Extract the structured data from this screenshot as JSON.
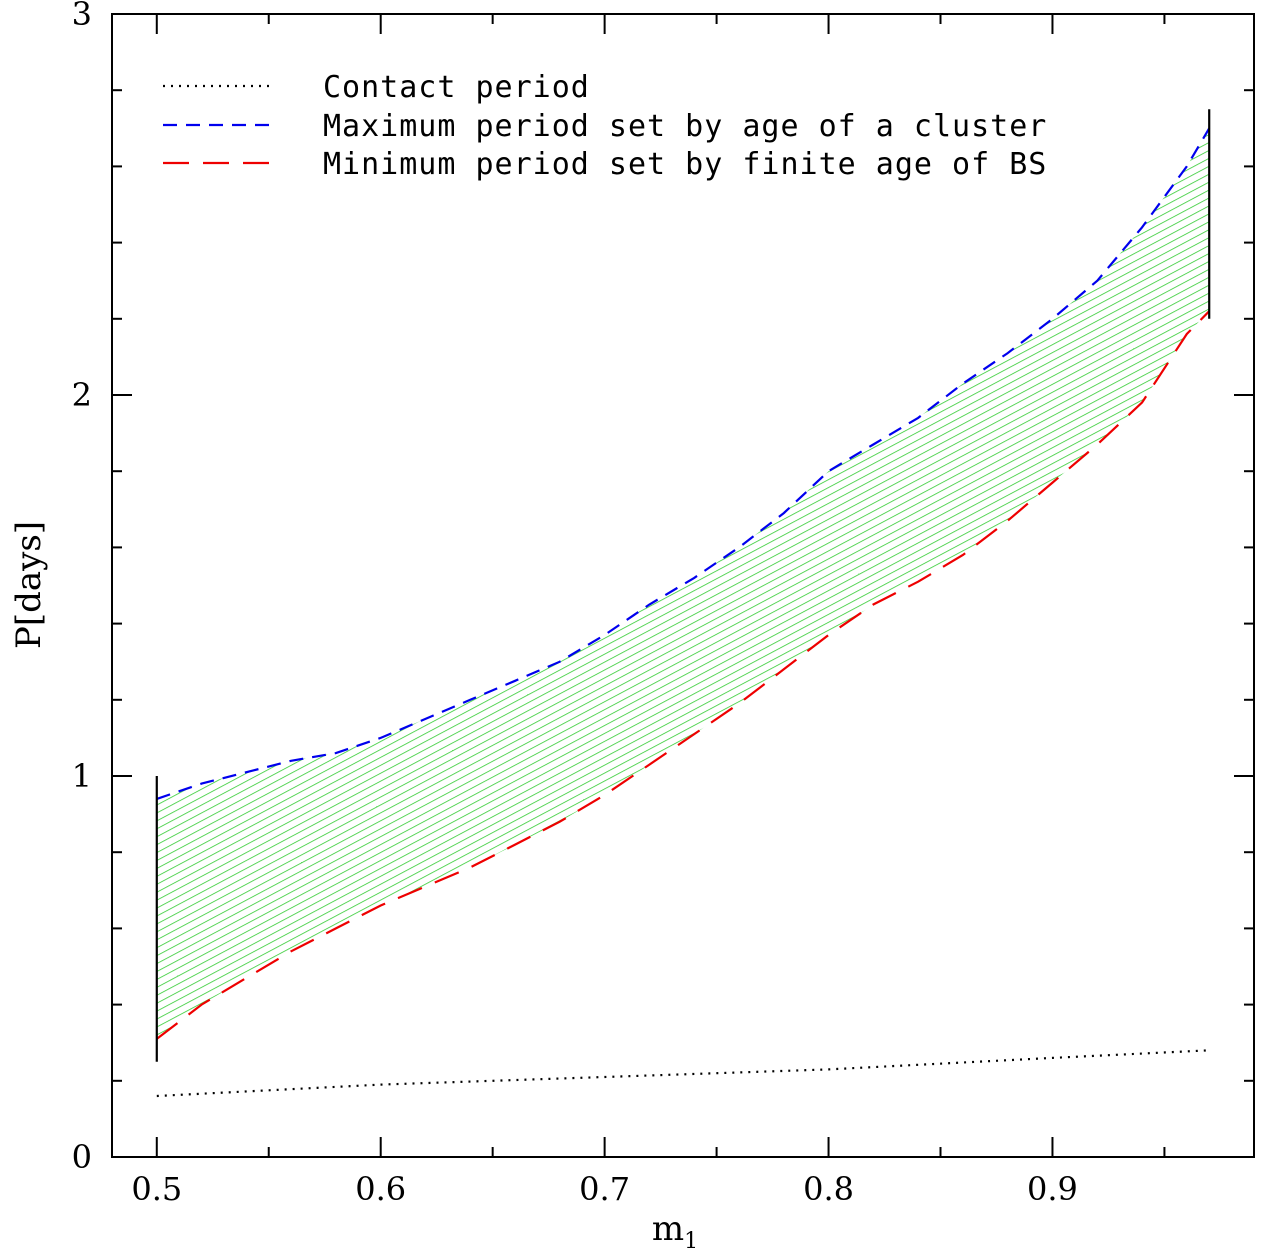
{
  "chart_data": {
    "type": "line",
    "xlabel": "m",
    "xlabel_sub": "1",
    "ylabel": "P[days]",
    "xlim": [
      0.48,
      0.99
    ],
    "ylim": [
      0,
      3
    ],
    "xticks": [
      0.5,
      0.6,
      0.7,
      0.8,
      0.9
    ],
    "xtick_labels": [
      "0.5",
      "0.6",
      "0.7",
      "0.8",
      "0.9"
    ],
    "yticks": [
      0,
      1,
      2,
      3
    ],
    "ytick_labels": [
      "0",
      "1",
      "2",
      "3"
    ],
    "legend_position": "top-left",
    "shaded_region": {
      "between": [
        "Maximum period set by age of a cluster",
        "Minimum period set by finite age of BS"
      ],
      "color": "#22cc22",
      "pattern": "diagonal-hatch"
    },
    "bounds": [
      {
        "x": 0.5,
        "y_range": [
          0.25,
          1.0
        ]
      },
      {
        "x": 0.97,
        "y_range": [
          2.2,
          2.75
        ]
      }
    ],
    "series": [
      {
        "name": "Contact period",
        "style": "dotted",
        "color": "#000000",
        "x": [
          0.5,
          0.6,
          0.7,
          0.8,
          0.9,
          0.97
        ],
        "y": [
          0.16,
          0.19,
          0.21,
          0.23,
          0.26,
          0.28
        ]
      },
      {
        "name": "Maximum period set by age of a cluster",
        "style": "short-dash",
        "color": "#0000ee",
        "x": [
          0.5,
          0.52,
          0.54,
          0.56,
          0.58,
          0.6,
          0.62,
          0.64,
          0.66,
          0.68,
          0.7,
          0.72,
          0.74,
          0.76,
          0.78,
          0.8,
          0.82,
          0.84,
          0.86,
          0.88,
          0.9,
          0.92,
          0.94,
          0.96,
          0.97
        ],
        "y": [
          0.94,
          0.98,
          1.01,
          1.04,
          1.06,
          1.1,
          1.15,
          1.2,
          1.25,
          1.3,
          1.37,
          1.45,
          1.52,
          1.6,
          1.69,
          1.8,
          1.87,
          1.94,
          2.03,
          2.11,
          2.2,
          2.3,
          2.44,
          2.6,
          2.7
        ]
      },
      {
        "name": "Minimum period set by finite age of BS",
        "style": "long-dash",
        "color": "#ee0000",
        "x": [
          0.5,
          0.52,
          0.54,
          0.56,
          0.58,
          0.6,
          0.62,
          0.64,
          0.66,
          0.68,
          0.7,
          0.72,
          0.74,
          0.76,
          0.78,
          0.8,
          0.82,
          0.84,
          0.86,
          0.88,
          0.9,
          0.92,
          0.94,
          0.96,
          0.97
        ],
        "y": [
          0.31,
          0.4,
          0.47,
          0.54,
          0.6,
          0.66,
          0.71,
          0.76,
          0.82,
          0.88,
          0.95,
          1.03,
          1.11,
          1.19,
          1.28,
          1.37,
          1.45,
          1.51,
          1.58,
          1.67,
          1.77,
          1.87,
          1.98,
          2.16,
          2.22
        ]
      }
    ]
  }
}
